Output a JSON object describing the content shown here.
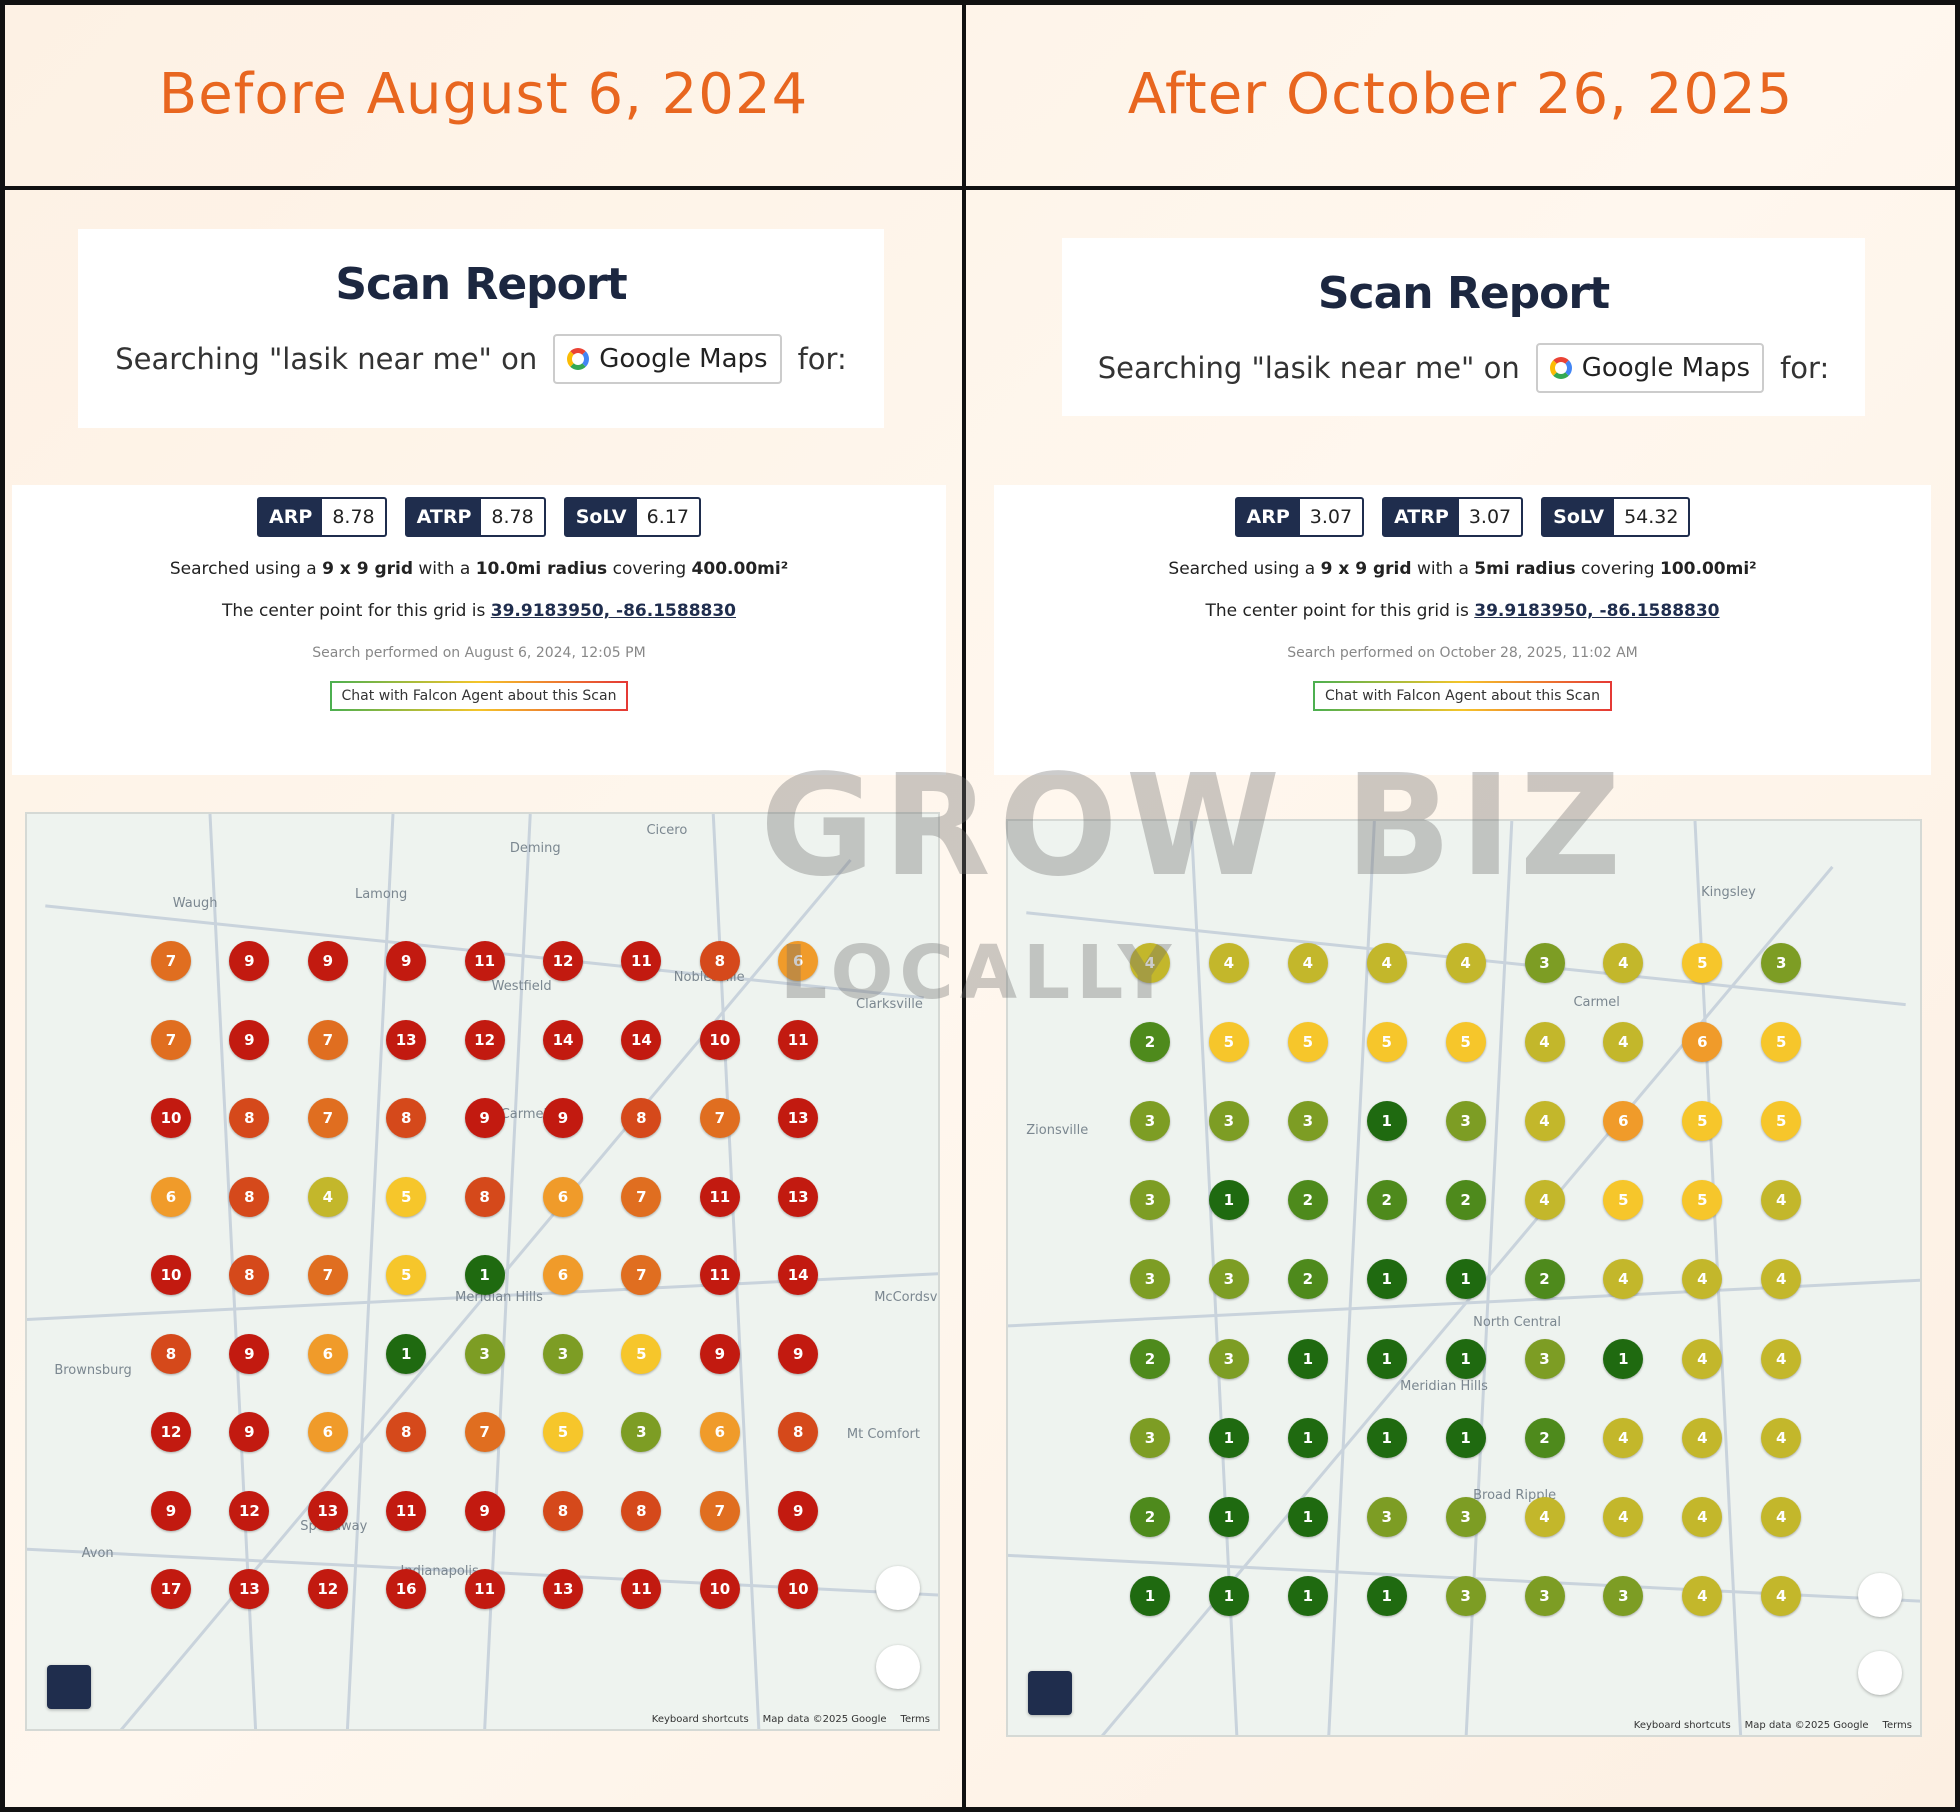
{
  "panels": [
    {
      "heading": "Before August 6, 2024",
      "report": {
        "title": "Scan Report",
        "search_prefix": "Searching \"lasik near me\" on",
        "engine": "Google Maps",
        "suffix": "for:"
      },
      "metrics": [
        {
          "label": "ARP",
          "value": "8.78"
        },
        {
          "label": "ATRP",
          "value": "8.78"
        },
        {
          "label": "SoLV",
          "value": "6.17"
        }
      ],
      "grid_text": [
        "Searched using a",
        "9 x 9 grid",
        "with a",
        "10.0mi radius",
        "covering",
        "400.00mi²"
      ],
      "center_text": "The center point for this grid is",
      "center_link": "39.9183950, -86.1588830",
      "performed": "Search performed on August 6, 2024, 12:05 PM",
      "chat": "Chat with Falcon Agent about this Scan",
      "map": {
        "labels": [
          "Lamong",
          "Waugh",
          "Deming",
          "Cicero",
          "Westfield",
          "Noblesville",
          "Clarksville",
          "Carmel",
          "McCordsville",
          "Meridian Hills",
          "Brownsburg",
          "Mt Comfort",
          "Speedway",
          "Avon",
          "Indianapolis"
        ],
        "ranks": [
          [
            7,
            9,
            9,
            9,
            11,
            12,
            11,
            8,
            6
          ],
          [
            7,
            9,
            7,
            13,
            12,
            14,
            14,
            10,
            11
          ],
          [
            10,
            8,
            7,
            8,
            9,
            9,
            8,
            7,
            13
          ],
          [
            6,
            8,
            4,
            5,
            8,
            6,
            7,
            11,
            13
          ],
          [
            10,
            8,
            7,
            5,
            1,
            6,
            7,
            11,
            14
          ],
          [
            8,
            9,
            6,
            1,
            3,
            3,
            5,
            9,
            9
          ],
          [
            12,
            9,
            6,
            8,
            7,
            5,
            3,
            6,
            8
          ],
          [
            9,
            12,
            13,
            11,
            9,
            8,
            8,
            7,
            9
          ],
          [
            17,
            13,
            12,
            16,
            11,
            13,
            11,
            10,
            10
          ]
        ],
        "footer": [
          "Keyboard shortcuts",
          "Map data ©2025 Google",
          "Terms"
        ]
      }
    },
    {
      "heading": "After October 26, 2025",
      "report": {
        "title": "Scan Report",
        "search_prefix": "Searching \"lasik near me\" on",
        "engine": "Google Maps",
        "suffix": "for:"
      },
      "metrics": [
        {
          "label": "ARP",
          "value": "3.07"
        },
        {
          "label": "ATRP",
          "value": "3.07"
        },
        {
          "label": "SoLV",
          "value": "54.32"
        }
      ],
      "grid_text": [
        "Searched using a",
        "9 x 9 grid",
        "with a",
        "5mi radius",
        "covering",
        "100.00mi²"
      ],
      "center_text": "The center point for this grid is",
      "center_link": "39.9183950, -86.1588830",
      "performed": "Search performed on October 28, 2025, 11:02 AM",
      "chat": "Chat with Falcon Agent about this Scan",
      "map": {
        "labels": [
          "Kingsley",
          "Carmel",
          "Zionsville",
          "Meridian Hills",
          "North Central",
          "Broad Ripple"
        ],
        "ranks": [
          [
            4,
            4,
            4,
            4,
            4,
            3,
            4,
            5,
            3
          ],
          [
            2,
            5,
            5,
            5,
            5,
            4,
            4,
            6,
            5
          ],
          [
            3,
            3,
            3,
            1,
            3,
            4,
            6,
            5,
            5
          ],
          [
            3,
            1,
            2,
            2,
            2,
            4,
            5,
            5,
            4
          ],
          [
            3,
            3,
            2,
            1,
            1,
            2,
            4,
            4,
            4
          ],
          [
            2,
            3,
            1,
            1,
            1,
            3,
            1,
            4,
            4
          ],
          [
            3,
            1,
            1,
            1,
            1,
            2,
            4,
            4,
            4
          ],
          [
            2,
            1,
            1,
            3,
            3,
            4,
            4,
            4,
            4
          ],
          [
            1,
            1,
            1,
            1,
            3,
            3,
            3,
            4,
            4
          ]
        ],
        "footer": [
          "Keyboard shortcuts",
          "Map data ©2025 Google",
          "Terms"
        ]
      }
    }
  ],
  "watermark": {
    "brand": "GROW BIZ",
    "tagline": "LOCALLY"
  }
}
